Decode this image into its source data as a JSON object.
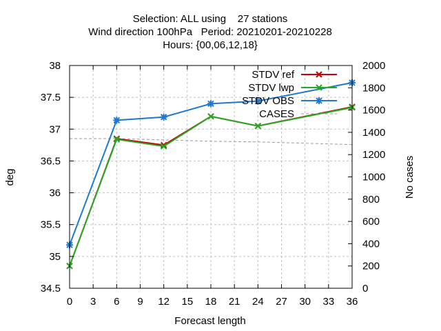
{
  "chart_data": {
    "type": "line",
    "title_lines": [
      "Selection: ALL using    27 stations",
      "Wind direction 100hPa   Period: 20210201-20210228",
      "Hours: {00,06,12,18}"
    ],
    "xlabel": "Forecast length",
    "ylabel": "deg",
    "y2label": "No cases",
    "xlim": [
      0,
      36
    ],
    "ylim": [
      34.5,
      38
    ],
    "y2lim": [
      0,
      2000
    ],
    "x_ticks": [
      "0",
      "3",
      "6",
      "9",
      "12",
      "15",
      "18",
      "21",
      "24",
      "27",
      "30",
      "33",
      "36"
    ],
    "y_ticks": [
      "34.5",
      "35",
      "35.5",
      "36",
      "36.5",
      "37",
      "37.5",
      "38"
    ],
    "y2_ticks": [
      "0",
      "200",
      "400",
      "600",
      "800",
      "1000",
      "1200",
      "1400",
      "1600",
      "1800",
      "2000"
    ],
    "grid": true,
    "legend_position": "top-right",
    "series": [
      {
        "name": "STDV ref",
        "color": "#cc0000",
        "axis": "left",
        "marker": "x",
        "x": [
          0,
          6,
          12,
          18,
          24,
          36
        ],
        "values": [
          34.85,
          36.85,
          36.75,
          37.2,
          37.05,
          37.35
        ]
      },
      {
        "name": "STDV lwp",
        "color": "#22aa22",
        "axis": "left",
        "marker": "x",
        "x": [
          0,
          6,
          12,
          18,
          24,
          36
        ],
        "values": [
          34.85,
          36.84,
          36.73,
          37.2,
          37.05,
          37.34
        ]
      },
      {
        "name": "STDV OBS",
        "color": "#1e78d2",
        "axis": "left",
        "marker": "star",
        "x": [
          0,
          6,
          12,
          18,
          24,
          36
        ],
        "values": [
          35.18,
          37.14,
          37.19,
          37.4,
          37.44,
          37.73
        ]
      },
      {
        "name": "CASES",
        "color": "#999999",
        "axis": "right",
        "dashed": true,
        "x": [
          0,
          6,
          12,
          18,
          24,
          36
        ],
        "values": [
          1344,
          1344,
          1332,
          1320,
          1314,
          1290
        ]
      }
    ]
  }
}
